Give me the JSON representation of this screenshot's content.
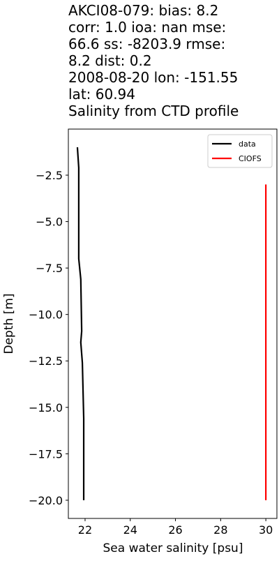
{
  "chart_data": {
    "type": "line",
    "title": [
      "AKCI08-079: bias: 8.2",
      "corr: 1.0  ioa: nan  mse:",
      "66.6  ss: -8203.9  rmse:",
      "8.2  dist: 0.2",
      "2008-08-20 lon: -151.55",
      "lat: 60.94",
      "Salinity from CTD profile"
    ],
    "xlabel": "Sea water salinity [psu]",
    "ylabel": "Depth [m]",
    "xlim": [
      21.26,
      30.49
    ],
    "ylim": [
      -20.98,
      -0.02
    ],
    "xticks": [
      22,
      24,
      26,
      28,
      30
    ],
    "yticks": [
      {
        "value": -2.5,
        "label": "−2.5"
      },
      {
        "value": -5.0,
        "label": "−5.0"
      },
      {
        "value": -7.5,
        "label": "−7.5"
      },
      {
        "value": -10.0,
        "label": "−10.0"
      },
      {
        "value": -12.5,
        "label": "−12.5"
      },
      {
        "value": -15.0,
        "label": "−15.0"
      },
      {
        "value": -17.5,
        "label": "−17.5"
      },
      {
        "value": -20.0,
        "label": "−20.0"
      }
    ],
    "legend": "upper right",
    "series": [
      {
        "name": "data",
        "color": "#000000",
        "x": [
          21.66,
          21.72,
          21.72,
          21.81,
          21.85,
          21.81,
          21.88,
          21.91,
          21.94,
          21.94,
          21.94
        ],
        "y": [
          -1.0,
          -2.1,
          -7.0,
          -8.1,
          -10.9,
          -11.5,
          -12.6,
          -14.1,
          -15.6,
          -19.0,
          -20.0
        ]
      },
      {
        "name": "CIOFS",
        "color": "#ff0000",
        "x": [
          30.0,
          30.0
        ],
        "y": [
          -3.0,
          -20.0
        ]
      }
    ]
  }
}
